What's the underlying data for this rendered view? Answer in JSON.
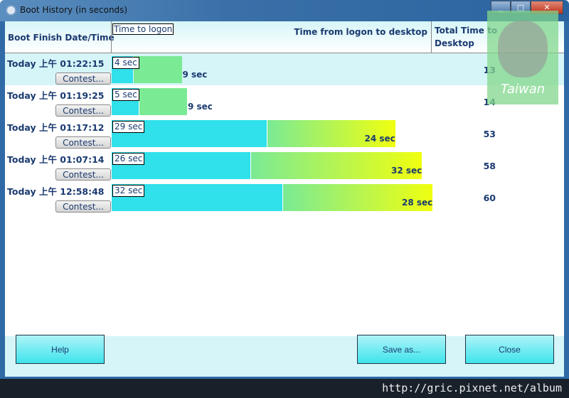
{
  "window": {
    "title": "Boot History (in seconds)"
  },
  "header": {
    "date": "Boot Finish Date/Time",
    "logon": "Time to logon",
    "desktop": "Time from logon to desktop",
    "total": "Total Time to Desktop"
  },
  "rows": [
    {
      "date": "Today  上午 01:22:15",
      "logon": 4,
      "logon_label": "4 sec",
      "desktop": 9,
      "desktop_label": "9 sec",
      "total": "13",
      "button": "Contest..."
    },
    {
      "date": "Today  上午 01:19:25",
      "logon": 5,
      "logon_label": "5 sec",
      "desktop": 9,
      "desktop_label": "9 sec",
      "total": "14",
      "button": "Contest..."
    },
    {
      "date": "Today  上午 01:17:12",
      "logon": 29,
      "logon_label": "29 sec",
      "desktop": 24,
      "desktop_label": "24 sec",
      "total": "53",
      "button": "Contest..."
    },
    {
      "date": "Today  上午 01:07:14",
      "logon": 26,
      "logon_label": "26 sec",
      "desktop": 32,
      "desktop_label": "32 sec",
      "total": "58",
      "button": "Contest..."
    },
    {
      "date": "Today  上午 12:58:48",
      "logon": 32,
      "logon_label": "32 sec",
      "desktop": 28,
      "desktop_label": "28 sec",
      "total": "60",
      "button": "Contest..."
    }
  ],
  "buttons": {
    "help": "Help",
    "save": "Save as...",
    "close": "Close"
  },
  "watermark": {
    "logo_text": "Taiwan",
    "url": "http://gric.pixnet.net/album"
  },
  "colors": {
    "logon_bar": "#30e0ea",
    "desktop_bar": "#7aea95",
    "desktop_bar_long": "#f0ff10"
  }
}
